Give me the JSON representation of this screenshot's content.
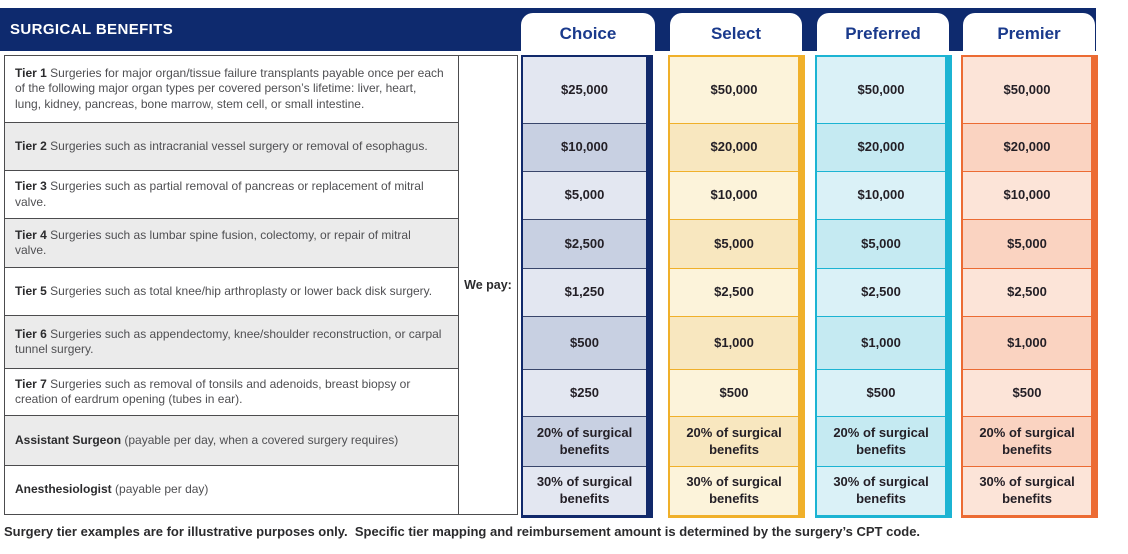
{
  "title": "SURGICAL BENEFITS",
  "we_pay_label": "We pay:",
  "footer": "Surgery tier examples are for illustrative purposes only.  Specific tier mapping and reimbursement amount is determined by the surgery’s CPT code.",
  "colors": {
    "header_bar": "#0e2a6e",
    "tab_text": "#1a3a8c",
    "table_border": "#4c4c4e",
    "row_alt_gray": "#ebebeb",
    "body_text": "#4f4f52",
    "bold_text": "#2b2b2d",
    "value_text": "#231f26"
  },
  "rows": [
    {
      "bold": "Tier 1",
      "rest": " Surgeries for major organ/tissue failure transplants payable once per each of the following major organ types per covered person’s lifetime: liver, heart, lung, kidney, pancreas, bone marrow, stem cell, or small intestine."
    },
    {
      "bold": "Tier 2",
      "rest": " Surgeries such as intracranial vessel surgery or removal of esophagus."
    },
    {
      "bold": "Tier 3",
      "rest": " Surgeries such as partial removal of pancreas or replacement of mitral valve."
    },
    {
      "bold": "Tier 4",
      "rest": " Surgeries such as lumbar spine fusion, colectomy, or repair of mitral valve."
    },
    {
      "bold": "Tier 5",
      "rest": " Surgeries such as total knee/hip arthroplasty or lower back disk surgery."
    },
    {
      "bold": "Tier 6",
      "rest": " Surgeries such as appendectomy, knee/shoulder reconstruction, or carpal tunnel surgery."
    },
    {
      "bold": "Tier 7",
      "rest": " Surgeries such as removal of tonsils and adenoids, breast biopsy or creation of eardrum opening (tubes in ear)."
    },
    {
      "bold": "Assistant Surgeon",
      "rest": " (payable per day, when a covered surgery requires)"
    },
    {
      "bold": "Anesthesiologist",
      "rest": " (payable per day)"
    }
  ],
  "plans": [
    {
      "name": "Choice",
      "colors": {
        "accent": "#11296b",
        "light": "#e3e7f1",
        "dark": "#c8d0e2",
        "divider": "#39466b"
      },
      "values": [
        "$25,000",
        "$10,000",
        "$5,000",
        "$2,500",
        "$1,250",
        "$500",
        "$250",
        "20% of surgical benefits",
        "30% of surgical benefits"
      ]
    },
    {
      "name": "Select",
      "colors": {
        "accent": "#f0b02a",
        "light": "#fcf3da",
        "dark": "#f8e7bf",
        "divider": "#f0b02a"
      },
      "values": [
        "$50,000",
        "$20,000",
        "$10,000",
        "$5,000",
        "$2,500",
        "$1,000",
        "$500",
        "20% of surgical benefits",
        "30% of surgical benefits"
      ]
    },
    {
      "name": "Preferred",
      "colors": {
        "accent": "#1cb4d3",
        "light": "#daf1f7",
        "dark": "#c5eaf2",
        "divider": "#1cb4d3"
      },
      "values": [
        "$50,000",
        "$20,000",
        "$10,000",
        "$5,000",
        "$2,500",
        "$1,000",
        "$500",
        "20% of surgical benefits",
        "30% of surgical benefits"
      ]
    },
    {
      "name": "Premier",
      "colors": {
        "accent": "#ec6b33",
        "light": "#fce4d8",
        "dark": "#fad3c1",
        "divider": "#ec6b33"
      },
      "values": [
        "$50,000",
        "$20,000",
        "$10,000",
        "$5,000",
        "$2,500",
        "$1,000",
        "$500",
        "20% of surgical benefits",
        "30% of surgical benefits"
      ]
    }
  ]
}
